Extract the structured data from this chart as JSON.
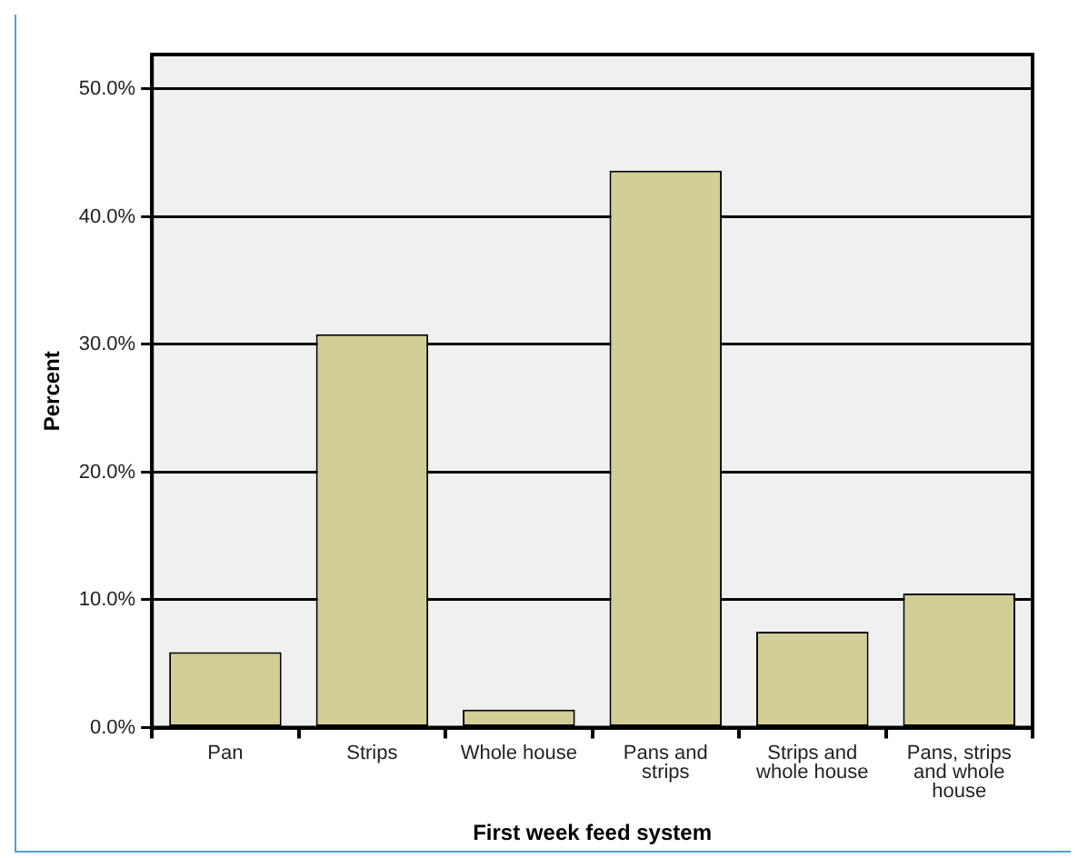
{
  "chart_data": {
    "type": "bar",
    "xlabel": "First week feed system",
    "ylabel": "Percent",
    "categories": [
      "Pan",
      "Strips",
      "Whole house",
      "Pans and strips",
      "Strips and whole house",
      "Pans, strips and whole house"
    ],
    "values": [
      5.9,
      30.8,
      1.4,
      43.6,
      7.5,
      10.5
    ],
    "color": "#d3ce95",
    "ylim": [
      0,
      52.7
    ],
    "yticks": [
      {
        "value": 0,
        "label": "0.0%"
      },
      {
        "value": 10,
        "label": "10.0%"
      },
      {
        "value": 20,
        "label": "20.0%"
      },
      {
        "value": 30,
        "label": "30.0%"
      },
      {
        "value": 40,
        "label": "40.0%"
      },
      {
        "value": 50,
        "label": "50.0%"
      }
    ],
    "grid": "y",
    "legend": false
  }
}
